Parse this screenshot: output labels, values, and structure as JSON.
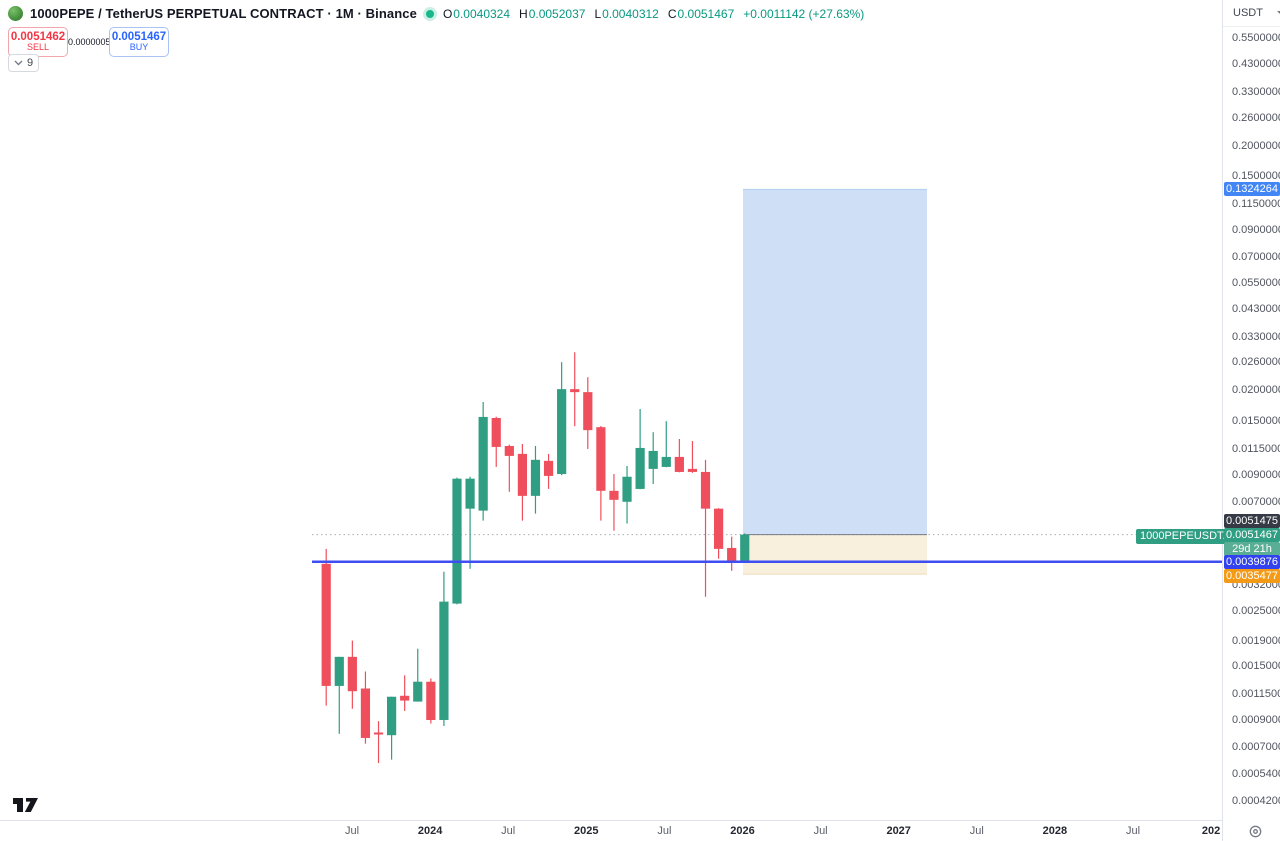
{
  "header": {
    "symbol_title": "1000PEPE / TetherUS PERPETUAL CONTRACT · 1M · Binance",
    "ohlc": {
      "o_label": "O",
      "o": "0.0040324",
      "h_label": "H",
      "h": "0.0052037",
      "l_label": "L",
      "l": "0.0040312",
      "c_label": "C",
      "c": "0.0051467",
      "change": "+0.0011142 (+27.63%)"
    },
    "sell": {
      "price": "0.0051462",
      "label": "SELL"
    },
    "spread": "0.0000005",
    "buy": {
      "price": "0.0051467",
      "label": "BUY"
    },
    "legend_collapse_count": "9"
  },
  "price_axis": {
    "currency": "USDT",
    "symbol_tag": "1000PEPEUSDT.P",
    "ticks": [
      "0.5500000",
      "0.4300000",
      "0.3300000",
      "0.2600000",
      "0.2000000",
      "0.1500000",
      "0.1150000",
      "0.0900000",
      "0.0700000",
      "0.0550000",
      "0.0430000",
      "0.0330000",
      "0.0260000",
      "0.0200000",
      "0.0150000",
      "0.0115000",
      "0.0090000",
      "0.0070000",
      "0.0032000",
      "0.0025000",
      "0.0019000",
      "0.0015000",
      "0.0011500",
      "0.0009000",
      "0.0007000",
      "0.0005400",
      "0.0004200"
    ],
    "badges": {
      "target": {
        "text": "0.1324264",
        "price": 0.1324264,
        "color": "#4286f5"
      },
      "high": {
        "text": "0.0051475",
        "price": 0.0051475,
        "color": "#363a45"
      },
      "last": {
        "text": "0.0051467",
        "price": 0.0051467,
        "color": "#2f9e83"
      },
      "countdown": {
        "text": "29d 21h",
        "color": "#5aae95"
      },
      "line": {
        "text": "0.0039876",
        "price": 0.0039876,
        "color": "#3142ee"
      },
      "stop": {
        "text": "0.0035477",
        "price": 0.0035477,
        "color": "#f39b17"
      }
    }
  },
  "time_axis": {
    "labels": [
      "Jul",
      "2024",
      "Jul",
      "2025",
      "Jul",
      "2026",
      "Jul",
      "2027",
      "Jul",
      "2028",
      "Jul",
      "202"
    ]
  },
  "chart_data": {
    "type": "candlestick",
    "symbol": "1000PEPEUSDT.P",
    "interval": "1M",
    "exchange": "Binance",
    "scale": "log",
    "price_range_visible": [
      0.00042,
      0.55
    ],
    "candles_ohlc": [
      [
        0.00391,
        0.0045,
        0.00103,
        0.00124
      ],
      [
        0.00124,
        0.00163,
        0.00079,
        0.00163
      ],
      [
        0.00163,
        0.0019,
        0.001,
        0.00118
      ],
      [
        0.00121,
        0.00142,
        0.00072,
        0.00076
      ],
      [
        0.0008,
        0.00089,
        0.0006,
        0.00079
      ],
      [
        0.00078,
        0.00112,
        0.00062,
        0.00112
      ],
      [
        0.00113,
        0.00137,
        0.00098,
        0.00108
      ],
      [
        0.00107,
        0.00176,
        0.00107,
        0.00129
      ],
      [
        0.00129,
        0.00133,
        0.00087,
        0.0009
      ],
      [
        0.0009,
        0.00363,
        0.00085,
        0.00274
      ],
      [
        0.00269,
        0.0088,
        0.00267,
        0.00871
      ],
      [
        0.00657,
        0.00887,
        0.00373,
        0.00871
      ],
      [
        0.00645,
        0.01792,
        0.00587,
        0.01557
      ],
      [
        0.01542,
        0.0156,
        0.00973,
        0.01174
      ],
      [
        0.01185,
        0.012,
        0.0077,
        0.01079
      ],
      [
        0.011,
        0.01207,
        0.00587,
        0.00741
      ],
      [
        0.00741,
        0.01185,
        0.00627,
        0.0104
      ],
      [
        0.0103,
        0.011,
        0.00791,
        0.00894
      ],
      [
        0.0091,
        0.02605,
        0.009,
        0.02022
      ],
      [
        0.02022,
        0.02861,
        0.01427,
        0.01966
      ],
      [
        0.01966,
        0.02263,
        0.01152,
        0.01375
      ],
      [
        0.01414,
        0.0143,
        0.00587,
        0.00777
      ],
      [
        0.00777,
        0.0091,
        0.00534,
        0.00714
      ],
      [
        0.00701,
        0.00982,
        0.00571,
        0.00887
      ],
      [
        0.00791,
        0.01678,
        0.00789,
        0.01163
      ],
      [
        0.00955,
        0.01349,
        0.00829,
        0.01131
      ],
      [
        0.00973,
        0.01496,
        0.0097,
        0.01069
      ],
      [
        0.01069,
        0.01265,
        0.00925,
        0.00928
      ],
      [
        0.00955,
        0.01241,
        0.0092,
        0.00928
      ],
      [
        0.00928,
        0.0104,
        0.00287,
        0.00657
      ],
      [
        0.00657,
        0.0066,
        0.0041,
        0.0045
      ],
      [
        0.00454,
        0.00505,
        0.00366,
        0.00399
      ],
      [
        0.0040324,
        0.0052037,
        0.0040312,
        0.0051467
      ]
    ],
    "position_tool": {
      "entry": 0.0051467,
      "target": 0.1324264,
      "stop": 0.0035477
    },
    "horizontal_line_price": 0.0039876,
    "colors": {
      "up": "#2f9e83",
      "down": "#ef4f5c",
      "profit_zone": "#cfe0f6",
      "loss_zone": "#f8efdc",
      "hline": "#3f4ef2"
    }
  }
}
